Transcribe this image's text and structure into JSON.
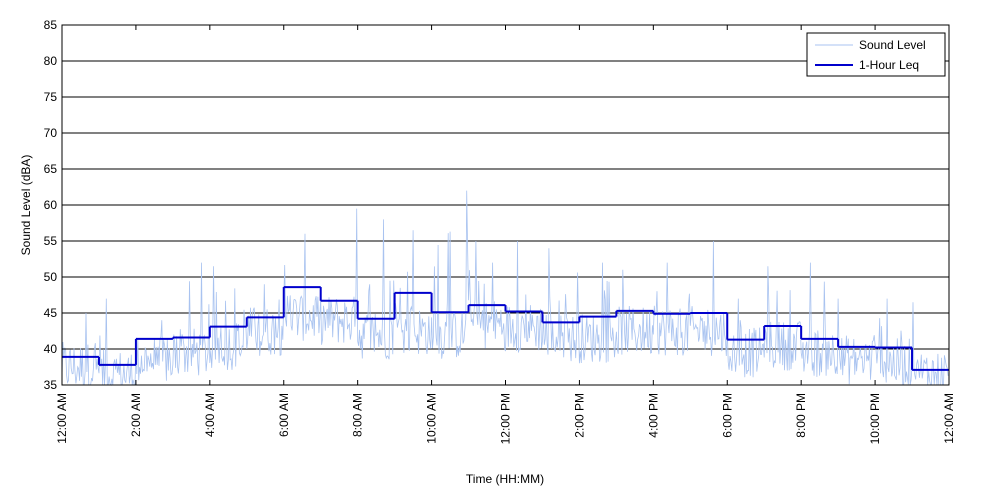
{
  "chart_data": {
    "type": "line",
    "xlabel": "Time (HH:MM)",
    "ylabel": "Sound Level (dBA)",
    "xlim": [
      "12:00 AM",
      "12:00 AM (next day)"
    ],
    "ylim": [
      35,
      85
    ],
    "yticks": [
      35,
      40,
      45,
      50,
      55,
      60,
      65,
      70,
      75,
      80,
      85
    ],
    "xtick_labels": [
      "12:00 AM",
      "2:00 AM",
      "4:00 AM",
      "6:00 AM",
      "8:00 AM",
      "10:00 AM",
      "12:00 PM",
      "2:00 PM",
      "4:00 PM",
      "6:00 PM",
      "8:00 PM",
      "10:00 PM",
      "12:00 AM"
    ],
    "grid": "horizontal",
    "legend_position": "top-right",
    "colors": {
      "sound_level": "#a9c3f0",
      "leq": "#0000cc"
    },
    "series": [
      {
        "name": "Sound Level",
        "style": "thin light-blue noisy line (1-minute samples)",
        "hours": [
          "12:00 AM",
          "1:00 AM",
          "2:00 AM",
          "3:00 AM",
          "4:00 AM",
          "5:00 AM",
          "6:00 AM",
          "7:00 AM",
          "8:00 AM",
          "9:00 AM",
          "10:00 AM",
          "11:00 AM",
          "12:00 PM",
          "1:00 PM",
          "2:00 PM",
          "3:00 PM",
          "4:00 PM",
          "5:00 PM",
          "6:00 PM",
          "7:00 PM",
          "8:00 PM",
          "9:00 PM",
          "10:00 PM",
          "11:00 PM"
        ],
        "hourly_typical": [
          37.5,
          36.5,
          38.5,
          39.5,
          40.5,
          42.5,
          44.5,
          44.0,
          42.0,
          42.5,
          42.0,
          43.5,
          43.0,
          41.5,
          41.5,
          42.5,
          42.5,
          42.5,
          39.5,
          40.5,
          39.5,
          38.5,
          38.0,
          36.5
        ],
        "hourly_peak": [
          45.0,
          47.0,
          44.0,
          52.0,
          51.5,
          49.0,
          56.0,
          59.5,
          58.0,
          56.5,
          62.0,
          55.0,
          55.0,
          54.0,
          52.0,
          51.0,
          52.0,
          55.0,
          47.0,
          51.5,
          52.0,
          47.0,
          47.0,
          46.5
        ]
      },
      {
        "name": "1-Hour Leq",
        "style": "thick dark-blue step line",
        "hours": [
          "12:00 AM",
          "1:00 AM",
          "2:00 AM",
          "3:00 AM",
          "4:00 AM",
          "5:00 AM",
          "6:00 AM",
          "7:00 AM",
          "8:00 AM",
          "9:00 AM",
          "10:00 AM",
          "11:00 AM",
          "12:00 PM",
          "1:00 PM",
          "2:00 PM",
          "3:00 PM",
          "4:00 PM",
          "5:00 PM",
          "6:00 PM",
          "7:00 PM",
          "8:00 PM",
          "9:00 PM",
          "10:00 PM",
          "11:00 PM"
        ],
        "values": [
          38.9,
          37.8,
          41.4,
          41.6,
          43.1,
          44.4,
          48.6,
          46.7,
          44.2,
          47.8,
          45.1,
          46.1,
          45.2,
          43.7,
          44.5,
          45.3,
          44.9,
          45.0,
          41.3,
          43.2,
          41.4,
          40.3,
          40.2,
          37.1
        ]
      }
    ]
  }
}
